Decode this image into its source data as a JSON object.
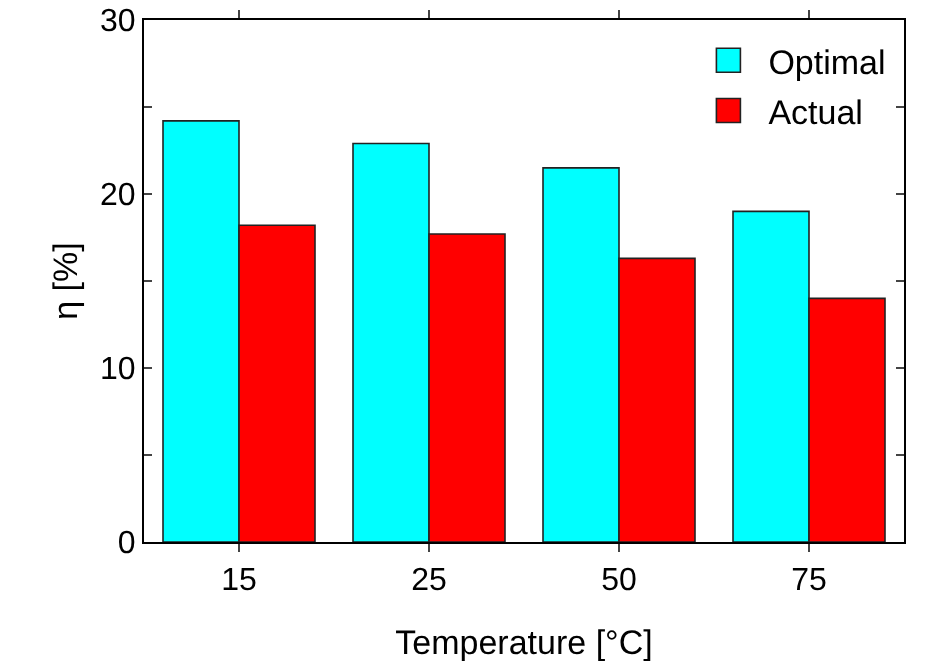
{
  "chart_data": {
    "type": "bar",
    "xlabel": "Temperature [°C]",
    "ylabel": "η [%]",
    "categories": [
      "15",
      "25",
      "50",
      "75"
    ],
    "series": [
      {
        "name": "Optimal",
        "color": "#00ffff",
        "values": [
          24.2,
          22.9,
          21.5,
          19.0
        ]
      },
      {
        "name": "Actual",
        "color": "#ff0000",
        "values": [
          18.2,
          17.7,
          16.3,
          14.0
        ]
      }
    ],
    "ylim": [
      0,
      30
    ],
    "yticks": [
      0,
      {
        "value": 5,
        "label": null
      },
      10,
      {
        "value": 15,
        "label": null
      },
      20,
      {
        "value": 25,
        "label": null
      },
      30
    ],
    "grid": false,
    "legend": "top right"
  }
}
